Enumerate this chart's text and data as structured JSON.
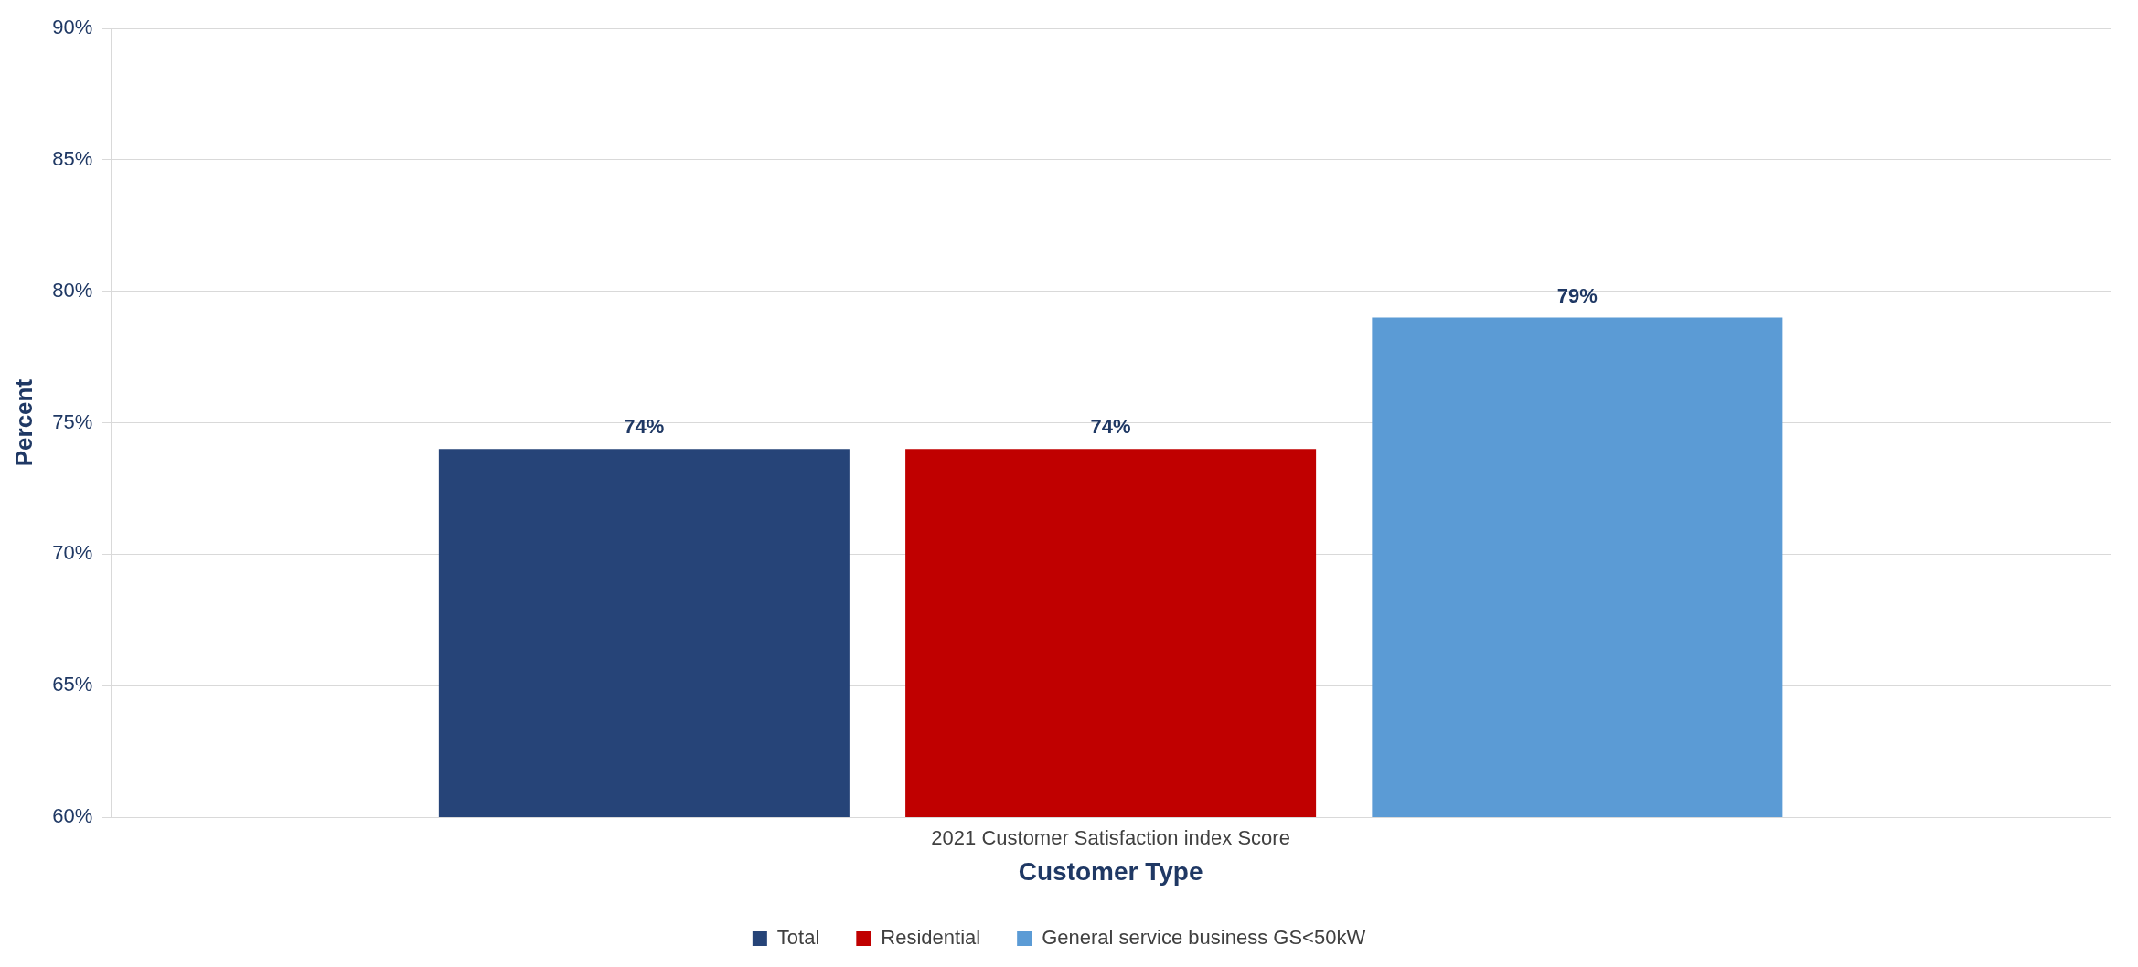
{
  "chart_data": {
    "type": "bar",
    "xlabel": "Customer Type",
    "ylabel": "Percent",
    "categories": [
      "2021 Customer Satisfaction index Score"
    ],
    "series": [
      {
        "name": "Total",
        "color": "#264478",
        "values": [
          74
        ],
        "value_labels": [
          "74%"
        ]
      },
      {
        "name": "Residential",
        "color": "#c00000",
        "values": [
          74
        ],
        "value_labels": [
          "74%"
        ]
      },
      {
        "name": "General service business GS<50kW",
        "color": "#5b9bd5",
        "values": [
          79
        ],
        "value_labels": [
          "79%"
        ]
      }
    ],
    "ylim": [
      60,
      90
    ],
    "yticks": [
      {
        "value": 60,
        "label": "60%"
      },
      {
        "value": 65,
        "label": "65%"
      },
      {
        "value": 70,
        "label": "70%"
      },
      {
        "value": 75,
        "label": "75%"
      },
      {
        "value": 80,
        "label": "80%"
      },
      {
        "value": 85,
        "label": "85%"
      },
      {
        "value": 90,
        "label": "90%"
      }
    ],
    "grid": "y",
    "legend": "bottom"
  }
}
